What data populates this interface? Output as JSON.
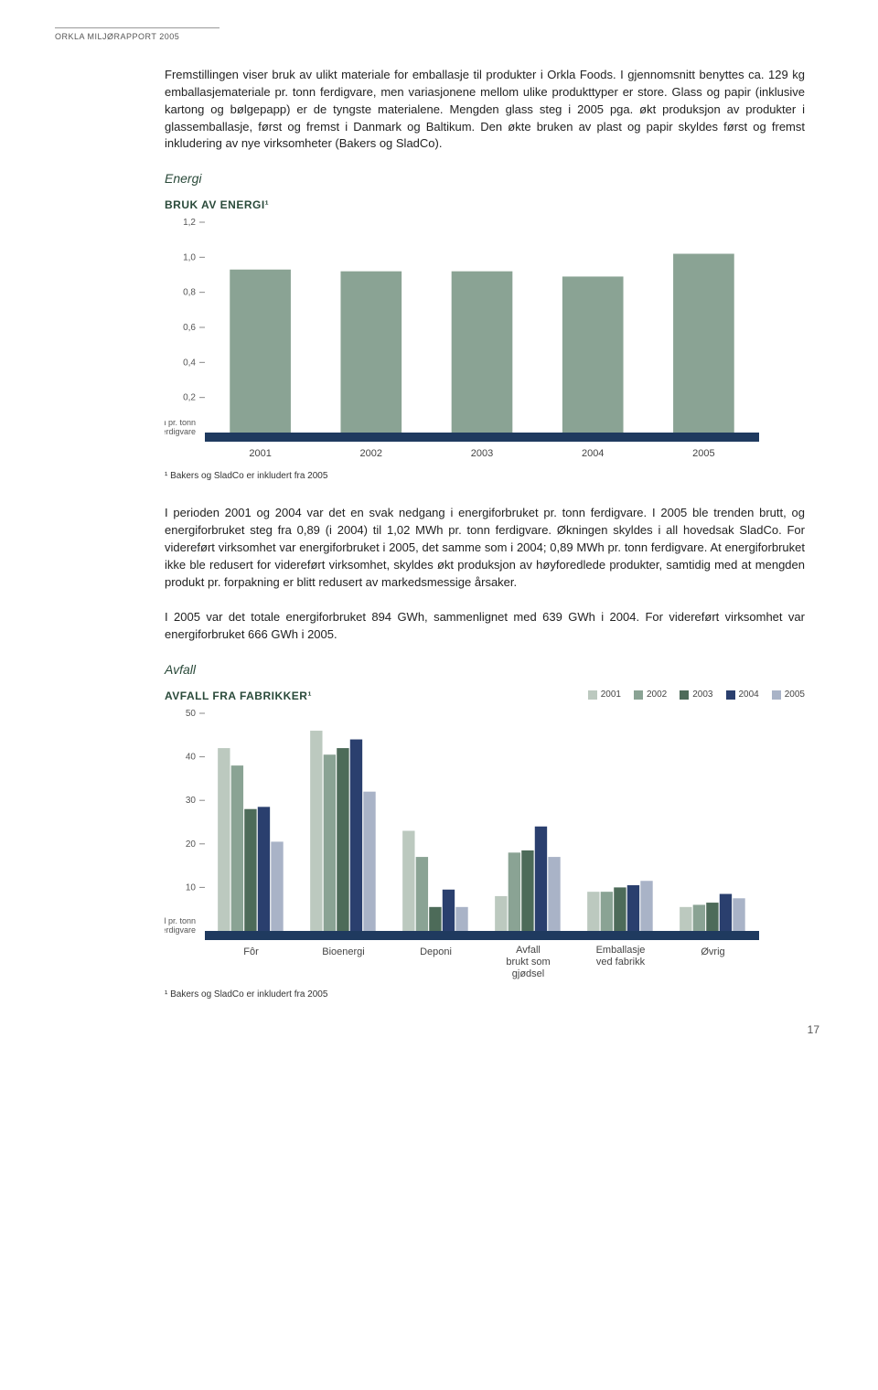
{
  "header": "ORKLA MILJØRAPPORT 2005",
  "para1": "Fremstillingen viser bruk av ulikt materiale for emballasje til produkter i Orkla Foods. I gjennomsnitt benyttes ca. 129 kg emballasjemateriale pr. tonn ferdigvare, men variasjonene mellom ulike produkttyper er store. Glass og papir (inklusive kartong og bølgepapp) er de tyngste materialene. Mengden glass steg i 2005 pga. økt produksjon av produkter i glassemballasje, først og fremst i Danmark og Baltikum. Den økte bruken av plast og papir skyldes først og fremst inkludering av nye virksomheter (Bakers og SladCo).",
  "section1": "Energi",
  "chart1": {
    "title": "BRUK AV ENERGI¹",
    "type": "bar",
    "categories": [
      "2001",
      "2002",
      "2003",
      "2004",
      "2005"
    ],
    "values": [
      0.93,
      0.92,
      0.92,
      0.89,
      1.02
    ],
    "bar_color": "#8aa394",
    "baseline_color": "#1f3a5f",
    "axis_color": "#888888",
    "ylim": [
      0,
      1.2
    ],
    "yticks": [
      "1,2",
      "1,0",
      "0,8",
      "0,6",
      "0,4",
      "0,2"
    ],
    "ytick_vals": [
      1.2,
      1.0,
      0.8,
      0.6,
      0.4,
      0.2
    ],
    "ylabel1": "MWh pr. tonn",
    "ylabel2": "ferdigvare",
    "footnote": "¹ Bakers og SladCo er inkludert fra 2005"
  },
  "para2": "I perioden 2001 og 2004 var det en svak nedgang i energiforbruket pr. tonn ferdigvare. I 2005 ble trenden brutt, og energiforbruket steg fra 0,89 (i 2004) til 1,02 MWh pr. tonn ferdigvare. Økningen skyldes i all hovedsak SladCo. For videreført virksomhet var energiforbruket i 2005, det samme som i 2004; 0,89 MWh pr. tonn ferdigvare. At energiforbruket ikke ble redusert for videreført virksomhet, skyldes økt produksjon av høyforedlede produkter, samtidig med at mengden produkt pr. forpakning er blitt redusert av markedsmessige årsaker.",
  "para3": "I 2005 var det totale energiforbruket 894 GWh, sammenlignet med 639 GWh i 2004. For videreført virksomhet var energiforbruket 666 GWh i 2005.",
  "section2": "Avfall",
  "chart2": {
    "title": "AVFALL FRA FABRIKKER¹",
    "type": "grouped-bar",
    "legend_years": [
      "2001",
      "2002",
      "2003",
      "2004",
      "2005"
    ],
    "legend_colors": [
      "#bcc9bf",
      "#8aa394",
      "#4d6b59",
      "#2a3f6e",
      "#a9b3c7"
    ],
    "categories": [
      "Fôr",
      "Bioenergi",
      "Deponi",
      "Avfall brukt som gjødsel",
      "Emballasje ved fabrikk",
      "Øvrig"
    ],
    "values": [
      [
        42,
        38,
        28,
        28.5,
        20.5
      ],
      [
        46,
        40.5,
        42,
        44,
        32
      ],
      [
        23,
        17,
        5.5,
        9.5,
        5.5
      ],
      [
        8,
        18,
        18.5,
        24,
        17
      ],
      [
        9,
        9,
        10,
        10.5,
        11.5
      ],
      [
        5.5,
        6,
        6.5,
        8.5,
        7.5
      ]
    ],
    "baseline_color": "#1f3a5f",
    "axis_color": "#888888",
    "ylim": [
      0,
      50
    ],
    "yticks": [
      "50",
      "40",
      "30",
      "20",
      "10"
    ],
    "ytick_vals": [
      50,
      40,
      30,
      20,
      10
    ],
    "ylabel1": "kg avfall pr. tonn",
    "ylabel2": "ferdigvare",
    "footnote": "¹ Bakers og SladCo er inkludert fra 2005"
  },
  "page_number": "17"
}
